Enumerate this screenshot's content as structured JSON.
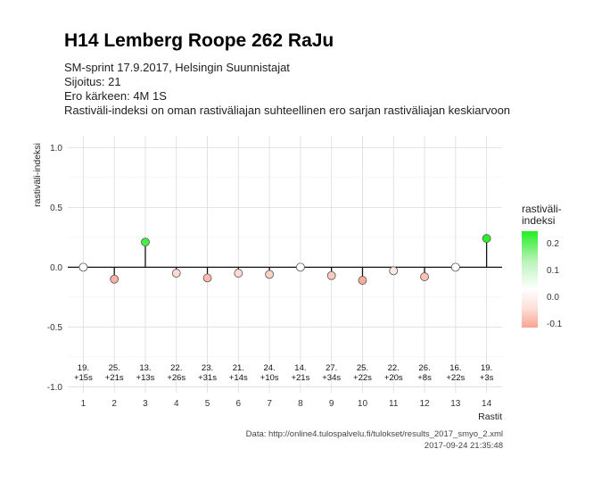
{
  "header": {
    "title": "H14 Lemberg Roope 262 RaJu",
    "subtitle_lines": [
      "SM-sprint 17.9.2017, Helsingin Suunnistajat",
      "Sijoitus: 21",
      "Ero kärkeen: 4M 1S",
      "Rastiväli-indeksi on oman rastiväliajan suhteellinen ero sarjan rastiväliajan keskiarvoon"
    ]
  },
  "caption": {
    "line1": "Data: http://online4.tulospalvelu.fi/tulokset/results_2017_smyo_2.xml",
    "line2": "2017-09-24 21:35:48"
  },
  "legend": {
    "title_line1": "rastiväli-",
    "title_line2": "indeksi",
    "ticks": [
      "0.2",
      "0.1",
      "0.0",
      "-0.1"
    ],
    "color_high": "#22ee22",
    "color_mid": "#ffffff",
    "color_low": "#f9a490"
  },
  "chart_data": {
    "type": "scatter",
    "xlabel": "Rastit",
    "ylabel": "rastiväli-indeksi",
    "ylim": [
      -1.0,
      1.0
    ],
    "xlim": [
      1,
      14
    ],
    "yticks": [
      "1.0",
      "0.5",
      "0.0",
      "-0.5",
      "-1.0"
    ],
    "ytick_values": [
      1.0,
      0.5,
      0.0,
      -0.5,
      -1.0
    ],
    "grid": true,
    "legend_position": "right",
    "x": [
      1,
      2,
      3,
      4,
      5,
      6,
      7,
      8,
      9,
      10,
      11,
      12,
      13,
      14
    ],
    "values": [
      0.0,
      -0.1,
      0.21,
      -0.05,
      -0.09,
      -0.05,
      -0.06,
      0.0,
      -0.07,
      -0.11,
      -0.03,
      -0.08,
      0.0,
      0.24
    ],
    "placement_labels": [
      "19.",
      "25.",
      "13.",
      "22.",
      "23.",
      "21.",
      "24.",
      "14.",
      "27.",
      "25.",
      "22.",
      "26.",
      "16.",
      "19."
    ],
    "time_labels": [
      "+15s",
      "+21s",
      "+13s",
      "+26s",
      "+31s",
      "+14s",
      "+10s",
      "+21s",
      "+34s",
      "+22s",
      "+20s",
      "+8s",
      "+22s",
      "+3s"
    ]
  }
}
